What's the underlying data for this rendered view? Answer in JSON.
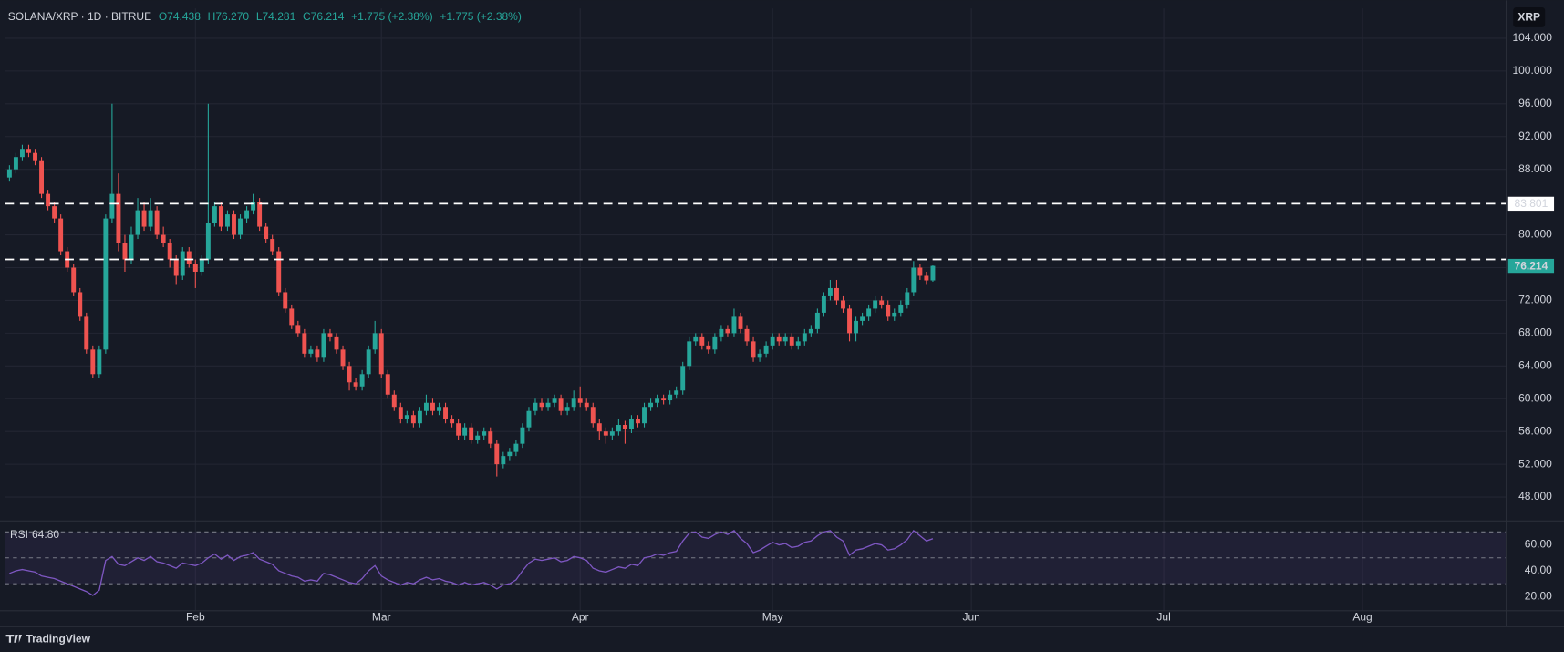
{
  "chart_data": {
    "type": "candlestick",
    "title": "SOLANA/XRP · 1D · BITRUE",
    "ohlc_text": [
      "O74.438",
      "H76.270",
      "L74.281",
      "C76.214"
    ],
    "change_text": [
      "+1.775 (+2.38%)",
      "+1.775 (+2.38%)"
    ],
    "currency_button": "XRP",
    "branding": "TradingView",
    "up_color": "#26a69a",
    "down_color": "#ef5350",
    "grid": true,
    "xlim": [
      -0.7,
      233.4
    ],
    "xticks": [
      {
        "value": 29,
        "label": "Feb"
      },
      {
        "value": 58,
        "label": "Mar"
      },
      {
        "value": 89,
        "label": "Apr"
      },
      {
        "value": 119,
        "label": "May"
      },
      {
        "value": 150,
        "label": "Jun"
      },
      {
        "value": 180,
        "label": "Jul"
      },
      {
        "value": 211,
        "label": "Aug"
      }
    ],
    "ylim": [
      45.32,
      107.65
    ],
    "yticks": [
      {
        "value": 48,
        "label": "48.000"
      },
      {
        "value": 52,
        "label": "52.000"
      },
      {
        "value": 56,
        "label": "56.000"
      },
      {
        "value": 60,
        "label": "60.000"
      },
      {
        "value": 64,
        "label": "64.000"
      },
      {
        "value": 68,
        "label": "68.000"
      },
      {
        "value": 72,
        "label": "72.000"
      },
      {
        "value": 76,
        "label": "76.000"
      },
      {
        "value": 80,
        "label": "80.000"
      },
      {
        "value": 84,
        "label": "84.000"
      },
      {
        "value": 88,
        "label": "88.000"
      },
      {
        "value": 92,
        "label": "92.000"
      },
      {
        "value": 96,
        "label": "96.000"
      },
      {
        "value": 100,
        "label": "100.000"
      },
      {
        "value": 104,
        "label": "104.000"
      }
    ],
    "hlines": [
      {
        "value": 83.801,
        "label": "83.801"
      },
      {
        "value": 77.0
      }
    ],
    "open": [
      87,
      88,
      89.5,
      90.5,
      90,
      89,
      85,
      83.5,
      82,
      78,
      76,
      73,
      70,
      66,
      63,
      66,
      82,
      85,
      79,
      77,
      80,
      83,
      81,
      83,
      80,
      79,
      77,
      75,
      78,
      76.5,
      75.5,
      77,
      81.5,
      83.5,
      81,
      82.5,
      80,
      82,
      83,
      84,
      81,
      79.5,
      78,
      73,
      71,
      69,
      68,
      65.5,
      66,
      65,
      68,
      67.5,
      66,
      64,
      62,
      61.5,
      63,
      66,
      68,
      63,
      60.5,
      59,
      57.5,
      58,
      57,
      58.5,
      59.5,
      58.5,
      59,
      57.5,
      57,
      55.5,
      56.5,
      55,
      55.5,
      56,
      54.5,
      52,
      53,
      53.5,
      54.5,
      56.5,
      58.5,
      59.5,
      59,
      59.5,
      60,
      58.5,
      59,
      60,
      59.5,
      59,
      57,
      56,
      55.5,
      56,
      56.8,
      56.3,
      57.5,
      57,
      59,
      59.5,
      60,
      59.8,
      60.5,
      61,
      64,
      67,
      67.5,
      66.5,
      66,
      67.5,
      68.5,
      68,
      70,
      68.5,
      67,
      65,
      65.5,
      66.5,
      67.5,
      67,
      67.5,
      66.5,
      67,
      68,
      68.5,
      70.5,
      72.5,
      73.5,
      72,
      71,
      68,
      69.5,
      70,
      71,
      72,
      71.5,
      70,
      70.5,
      71.5,
      73,
      76,
      75,
      74.438
    ],
    "high": [
      88.5,
      90,
      91,
      91,
      90.5,
      89.5,
      85.5,
      84,
      82.5,
      78.5,
      76.5,
      73.5,
      70.5,
      66.5,
      66.5,
      82.5,
      96,
      87.5,
      80,
      81,
      84.5,
      84,
      84.5,
      83.5,
      81,
      79.5,
      77.5,
      78.5,
      78.5,
      77,
      77.5,
      96,
      84,
      84,
      83,
      83,
      82.5,
      83.5,
      85,
      84.5,
      81.5,
      80,
      78.5,
      73.5,
      71.5,
      69.5,
      68.5,
      66.5,
      66.5,
      68.5,
      68.5,
      68,
      66.5,
      64.5,
      62.5,
      63.5,
      66.5,
      69.5,
      68.5,
      63.5,
      61,
      59.5,
      58.5,
      58.5,
      59,
      60.5,
      60,
      59.5,
      59.5,
      58,
      57.5,
      57,
      57,
      56,
      56.5,
      56.5,
      55,
      53.5,
      54,
      55,
      57,
      59,
      60,
      60,
      60,
      60.5,
      60.5,
      59.5,
      61,
      61.5,
      60,
      59.5,
      57.5,
      56.5,
      56.5,
      57.5,
      57.3,
      58,
      58,
      59.5,
      60,
      60.5,
      60.5,
      61,
      61.5,
      64.5,
      67.5,
      68,
      68,
      67,
      68,
      69,
      69,
      71,
      70.5,
      69,
      67.5,
      66,
      67,
      68,
      68,
      68,
      68,
      67.5,
      68.5,
      69,
      71,
      73,
      74.5,
      74.5,
      72.5,
      71.5,
      70,
      70.5,
      71.5,
      72.5,
      72.5,
      72,
      71,
      72,
      73.5,
      76.8,
      76.5,
      75.5,
      76.27
    ],
    "low": [
      86.5,
      87.5,
      89,
      89.5,
      88.5,
      84.5,
      83,
      81.5,
      77.5,
      75.5,
      72.5,
      69.5,
      65.5,
      62.5,
      62.5,
      65.5,
      81.5,
      78,
      75.5,
      76.5,
      79.5,
      80.5,
      80.5,
      79.5,
      78.5,
      76,
      74,
      74.5,
      76,
      73.5,
      75,
      76.5,
      81,
      80.5,
      80.5,
      79.5,
      79.5,
      81.5,
      82.5,
      80.5,
      79,
      77.5,
      72.5,
      70.5,
      68.5,
      67.5,
      65,
      65,
      64.5,
      64.5,
      67,
      65.5,
      63.5,
      61,
      61,
      61,
      62.5,
      65.5,
      62.5,
      60,
      58.5,
      57,
      57,
      56.5,
      56.5,
      58,
      58,
      58,
      57,
      56.5,
      55,
      55,
      54.5,
      54.5,
      55,
      54,
      50.5,
      51.5,
      52.5,
      53,
      54,
      56,
      58,
      58.5,
      58.5,
      59,
      58,
      58,
      58.5,
      59,
      58.5,
      56.5,
      55,
      54.5,
      55,
      55.5,
      54.5,
      55.8,
      56.5,
      56.5,
      58.5,
      59,
      59.3,
      59.3,
      60,
      60.5,
      63.5,
      66.5,
      66,
      65.5,
      65.5,
      67,
      67.5,
      67.5,
      68,
      66.5,
      64.5,
      64.5,
      65,
      66,
      66.5,
      66.5,
      66,
      66,
      66.5,
      67.5,
      68,
      70,
      72,
      71.5,
      70.5,
      67,
      67,
      69,
      69.5,
      70.5,
      71,
      69.5,
      69.5,
      70,
      71,
      72.5,
      74.5,
      74,
      74.281
    ],
    "close": [
      88,
      89.5,
      90.5,
      90,
      89,
      85,
      83.5,
      82,
      78,
      76,
      73,
      70,
      66,
      63,
      66,
      82,
      85,
      79,
      77,
      80,
      83,
      81,
      83,
      80,
      79,
      77,
      75,
      78,
      76.5,
      75.5,
      77,
      81.5,
      83.5,
      81,
      82.5,
      80,
      82,
      83,
      84,
      81,
      79.5,
      78,
      73,
      71,
      69,
      68,
      65.5,
      66,
      65,
      68,
      67.5,
      66,
      64,
      62,
      61.5,
      63,
      66,
      68,
      63,
      60.5,
      59,
      57.5,
      58,
      57,
      58.5,
      59.5,
      58.5,
      59,
      57.5,
      57,
      55.5,
      56.5,
      55,
      55.5,
      56,
      54.5,
      52,
      53,
      53.5,
      54.5,
      56.5,
      58.5,
      59.5,
      59,
      59.5,
      60,
      58.5,
      59,
      60,
      59.5,
      59,
      57,
      56,
      55.5,
      56,
      56.8,
      56.3,
      57.5,
      57,
      59,
      59.5,
      60,
      59.8,
      60.5,
      61,
      64,
      67,
      67.5,
      66.5,
      66,
      67.5,
      68.5,
      68,
      70,
      68.5,
      67,
      65,
      65.5,
      66.5,
      67.5,
      67,
      67.5,
      66.5,
      67,
      68,
      68.5,
      70.5,
      72.5,
      73.5,
      72,
      71,
      68,
      69.5,
      70,
      71,
      72,
      71.5,
      70,
      70.5,
      71.5,
      73,
      76,
      75,
      74.438,
      76.214
    ],
    "rsi": {
      "type": "line",
      "name": "RSI",
      "last_value_label": "64.80",
      "color": "#7e57c2",
      "ylim": [
        9.2,
        76.9
      ],
      "yticks": [
        {
          "value": 20,
          "label": "20.00"
        },
        {
          "value": 40,
          "label": "40.00"
        },
        {
          "value": 60,
          "label": "60.00"
        }
      ],
      "levels": [
        30,
        50,
        70
      ],
      "values": [
        38,
        40,
        41,
        40,
        39,
        36,
        35,
        34,
        32,
        30,
        28,
        26,
        24,
        21,
        25,
        48,
        51,
        45,
        44,
        47,
        50,
        48,
        51,
        47,
        46,
        44,
        42,
        46,
        45,
        44,
        46,
        50,
        53,
        49,
        52,
        48,
        51,
        52,
        54,
        49,
        47,
        45,
        40,
        38,
        36,
        35,
        32,
        33,
        32,
        38,
        37,
        35,
        33,
        31,
        30,
        34,
        40,
        44,
        36,
        33,
        31,
        29,
        31,
        30,
        33,
        35,
        33,
        34,
        32,
        31,
        29,
        31,
        29,
        30,
        31,
        29,
        26,
        29,
        30,
        33,
        40,
        46,
        49,
        48,
        49,
        50,
        47,
        48,
        51,
        50,
        48,
        42,
        40,
        39,
        41,
        43,
        42,
        45,
        44,
        50,
        51,
        53,
        52,
        54,
        55,
        63,
        69,
        70,
        66,
        65,
        68,
        70,
        68,
        71,
        65,
        61,
        54,
        56,
        59,
        62,
        60,
        61,
        58,
        59,
        62,
        63,
        67,
        70,
        71,
        66,
        63,
        52,
        56,
        57,
        59,
        61,
        60,
        56,
        57,
        60,
        64,
        71,
        67,
        63,
        64.8
      ]
    }
  }
}
